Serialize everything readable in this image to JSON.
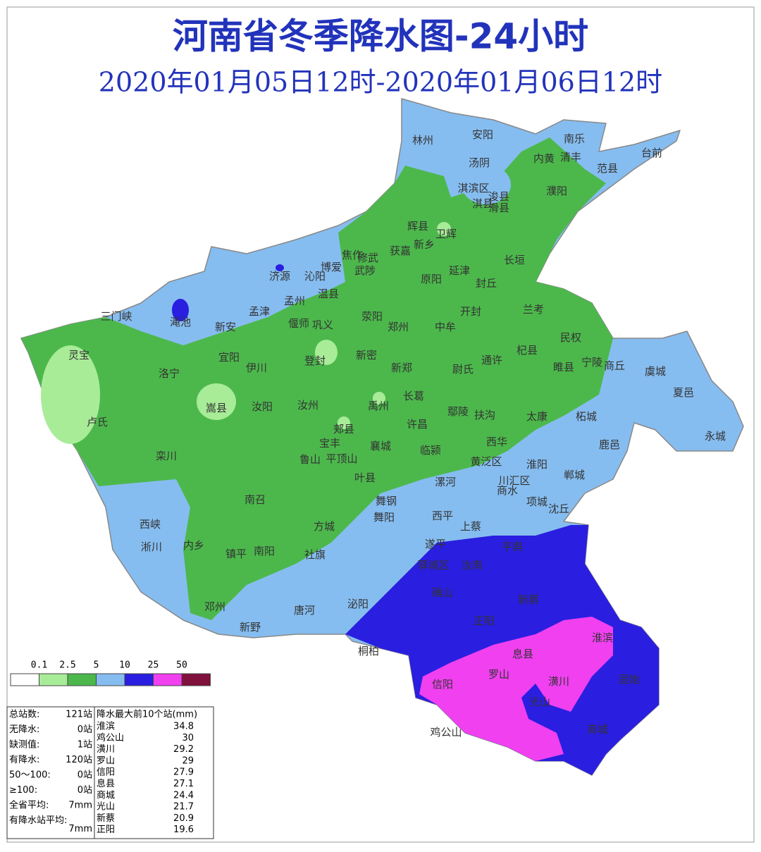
{
  "title": "河南省冬季降水图-24小时",
  "subtitle": "2020年01月05日12时-2020年01月06日12时",
  "legend": {
    "thresholds": [
      0.1,
      2.5,
      5,
      10,
      25,
      50
    ],
    "colors": [
      "#ffffff",
      "#a8ec98",
      "#4cb84c",
      "#86bdf0",
      "#2a1ee0",
      "#f040f0",
      "#80103c"
    ]
  },
  "places": [
    "林州",
    "安阳",
    "南乐",
    "内黄",
    "清丰",
    "范县",
    "台前",
    "汤阴",
    "淇滨区",
    "浚县",
    "淇县",
    "滑县",
    "濮阳",
    "辉县",
    "卫辉",
    "新乡",
    "获嘉",
    "修武",
    "焦作",
    "武陟",
    "长垣",
    "延津",
    "原阳",
    "封丘",
    "济源",
    "沁阳",
    "博爱",
    "温县",
    "孟州",
    "孟津",
    "渑池",
    "三门峡",
    "新安",
    "偃师",
    "巩义",
    "荥阳",
    "郑州",
    "中牟",
    "开封",
    "兰考",
    "民权",
    "杞县",
    "通许",
    "睢县",
    "宁陵",
    "商丘",
    "虞城",
    "夏邑",
    "灵宝",
    "宜阳",
    "伊川",
    "洛宁",
    "登封",
    "新密",
    "新郑",
    "尉氏",
    "长葛",
    "鄢陵",
    "扶沟",
    "太康",
    "柘城",
    "嵩县",
    "汝阳",
    "汝州",
    "禹州",
    "郏县",
    "宝丰",
    "襄城",
    "许昌",
    "临颍",
    "卢氏",
    "栾川",
    "鲁山",
    "平顶山",
    "叶县",
    "西华",
    "黄泛区",
    "淮阳",
    "郸城",
    "鹿邑",
    "永城",
    "漯河",
    "川汇区",
    "商水",
    "项城",
    "沈丘",
    "南召",
    "舞钢",
    "舞阳",
    "西平",
    "上蔡",
    "西峡",
    "淅川",
    "内乡",
    "方城",
    "镇平",
    "南阳",
    "社旗",
    "遂平",
    "汝南",
    "平舆",
    "驿城区",
    "确山",
    "新蔡",
    "泌阳",
    "正阳",
    "邓州",
    "唐河",
    "新野",
    "桐柏",
    "淮滨",
    "息县",
    "信阳",
    "罗山",
    "潢川",
    "固始",
    "光山",
    "商城",
    "鸡公山"
  ],
  "stats": [
    {
      "label": "总站数:",
      "value": "121站"
    },
    {
      "label": "无降水:",
      "value": "0站"
    },
    {
      "label": "缺测值:",
      "value": "1站"
    },
    {
      "label": "有降水:",
      "value": "120站"
    },
    {
      "label": "50～100:",
      "value": "0站"
    },
    {
      "label": "≥100:",
      "value": "0站"
    },
    {
      "label": "全省平均:",
      "value": "7mm"
    },
    {
      "label": "有降水站平均:",
      "value": "7mm"
    }
  ],
  "top10": {
    "header": "降水最大前10个站(mm)",
    "rows": [
      {
        "name": "淮滨",
        "value": 34.8
      },
      {
        "name": "鸡公山",
        "value": 30
      },
      {
        "name": "潢川",
        "value": 29.2
      },
      {
        "name": "罗山",
        "value": 29
      },
      {
        "name": "信阳",
        "value": 27.9
      },
      {
        "name": "息县",
        "value": 27.1
      },
      {
        "name": "商城",
        "value": 24.4
      },
      {
        "name": "光山",
        "value": 21.7
      },
      {
        "name": "新蔡",
        "value": 20.9
      },
      {
        "name": "正阳",
        "value": 19.6
      }
    ]
  }
}
